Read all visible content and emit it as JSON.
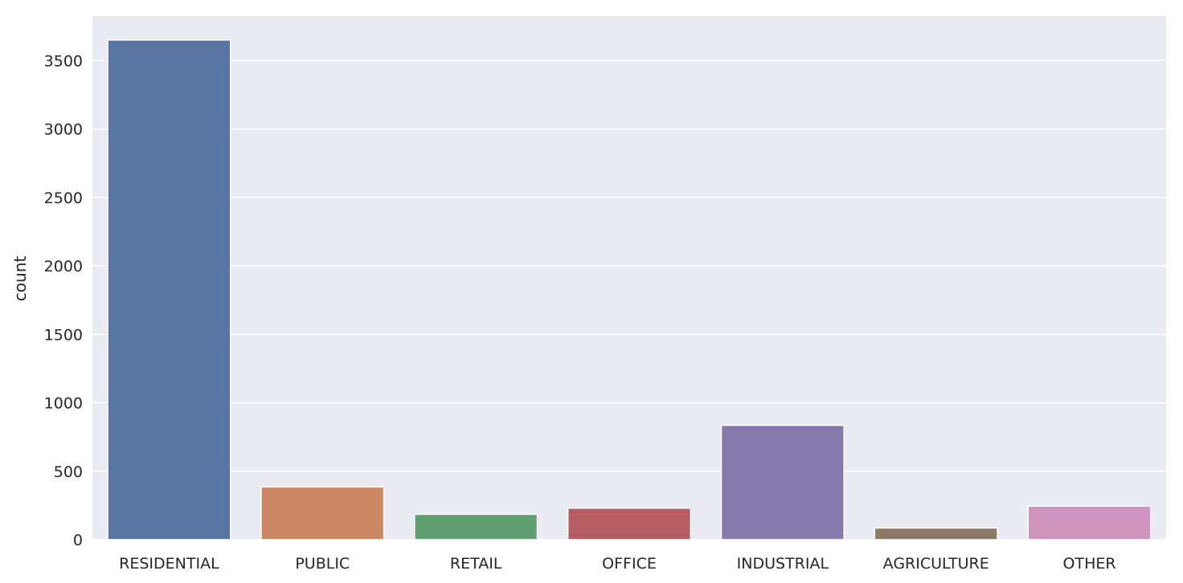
{
  "chart_data": {
    "type": "bar",
    "title": "",
    "xlabel": "",
    "ylabel": "count",
    "categories": [
      "RESIDENTIAL",
      "PUBLIC",
      "RETAIL",
      "OFFICE",
      "INDUSTRIAL",
      "AGRICULTURE",
      "OTHER"
    ],
    "values": [
      3650,
      385,
      185,
      230,
      835,
      85,
      245
    ],
    "colors": [
      "#5875a4",
      "#cc8963",
      "#5f9e6e",
      "#b55d60",
      "#857aab",
      "#8d7866",
      "#d095bf"
    ],
    "ylim": [
      0,
      3825
    ],
    "yticks": [
      0,
      500,
      1000,
      1500,
      2000,
      2500,
      3000,
      3500
    ],
    "grid": true,
    "background": "#eaeaf2",
    "legend": "none"
  }
}
